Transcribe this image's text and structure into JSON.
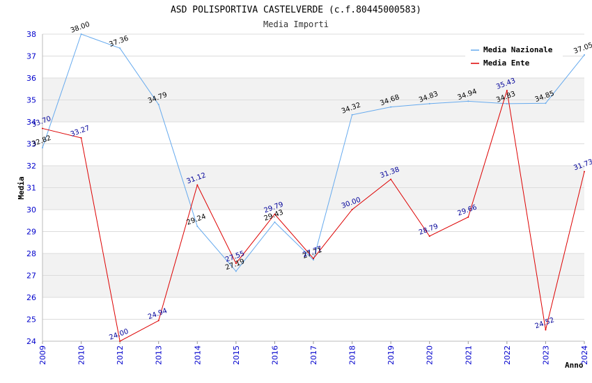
{
  "chart_data": {
    "type": "line",
    "title": "ASD POLISPORTIVA CASTELVERDE (c.f.80445000583)",
    "subtitle": "Media Importi",
    "xlabel": "Anno",
    "ylabel": "Media",
    "ylim": [
      24,
      38
    ],
    "yticks": [
      "24",
      "25",
      "26",
      "27",
      "28",
      "29",
      "30",
      "31",
      "32",
      "33",
      "34",
      "35",
      "36",
      "37",
      "38"
    ],
    "categories": [
      "2009",
      "2010",
      "2012",
      "2013",
      "2014",
      "2015",
      "2016",
      "2017",
      "2018",
      "2019",
      "2020",
      "2021",
      "2022",
      "2023",
      "2024"
    ],
    "legend_position": "top-right",
    "series": [
      {
        "name": "Media Nazionale",
        "color": "#66aaee",
        "label_color": "#000000",
        "values": [
          32.82,
          38.0,
          37.36,
          34.79,
          29.24,
          27.19,
          29.43,
          27.71,
          34.32,
          34.68,
          34.83,
          34.94,
          34.83,
          34.85,
          37.05
        ],
        "labels": [
          "32.82",
          "38.00",
          "37.36",
          "34.79",
          "29.24",
          "27.19",
          "29.43",
          "27.71",
          "34.32",
          "34.68",
          "34.83",
          "34.94",
          "34.83",
          "34.85",
          "37.05"
        ]
      },
      {
        "name": "Media Ente",
        "color": "#dd0000",
        "label_color": "#000099",
        "values": [
          33.7,
          33.27,
          24.0,
          24.94,
          31.12,
          27.55,
          29.79,
          27.77,
          30.0,
          31.38,
          28.79,
          29.66,
          35.43,
          24.52,
          31.73
        ],
        "labels": [
          "33.70",
          "33.27",
          "24.00",
          "24.94",
          "31.12",
          "27.55",
          "29.79",
          "27.77",
          "30.00",
          "31.38",
          "28.79",
          "29.66",
          "35.43",
          "24.52",
          "31.73"
        ]
      }
    ]
  }
}
